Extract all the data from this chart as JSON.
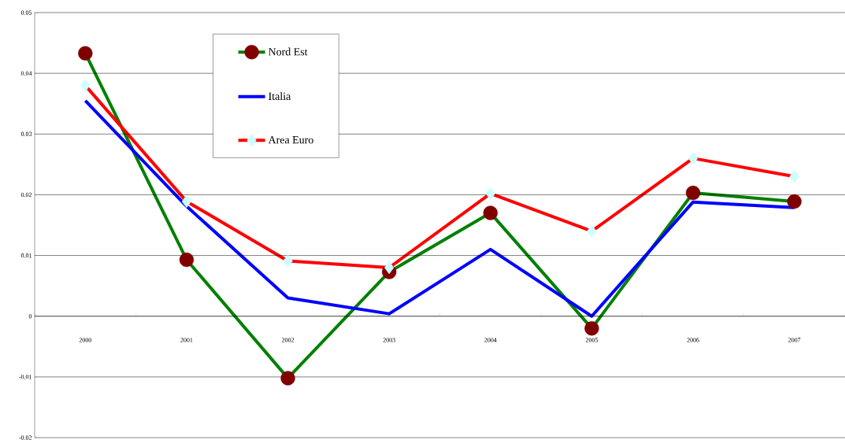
{
  "chart_data": {
    "type": "line",
    "categories": [
      "2000",
      "2001",
      "2002",
      "2003",
      "2004",
      "2005",
      "2006",
      "2007"
    ],
    "series": [
      {
        "name": "Nord Est",
        "color": "#008000",
        "marker": "circle",
        "values": [
          0.0433,
          0.0093,
          -0.0102,
          0.0073,
          0.017,
          -0.002,
          0.0203,
          0.0189
        ]
      },
      {
        "name": "Italia",
        "color": "#0000ff",
        "marker": "none",
        "values": [
          0.0355,
          0.0181,
          0.003,
          0.0004,
          0.011,
          0.0,
          0.0188,
          0.0179
        ]
      },
      {
        "name": "Area Euro",
        "color": "#ff0000",
        "marker": "diamond",
        "values": [
          0.038,
          0.0189,
          0.0091,
          0.008,
          0.0202,
          0.014,
          0.026,
          0.023
        ]
      }
    ],
    "ylim": [
      -0.02,
      0.05
    ],
    "yticks": [
      -0.02,
      -0.01,
      0,
      0.01,
      0.02,
      0.03,
      0.04,
      0.05
    ],
    "grid": "y",
    "legend": "top left",
    "line_style": "solid"
  }
}
